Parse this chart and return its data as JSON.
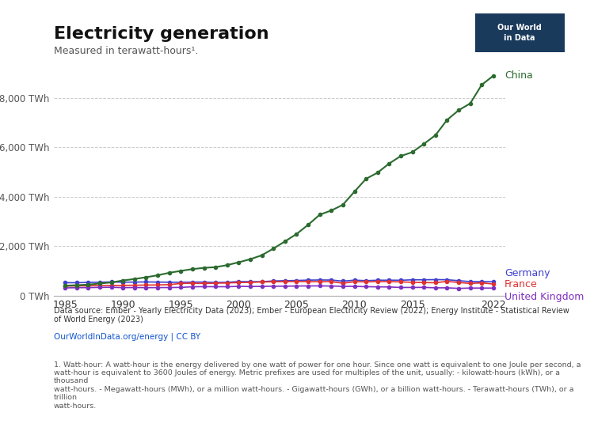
{
  "title": "Electricity generation",
  "subtitle": "Measured in terawatt-hours¹.",
  "years": [
    1985,
    1986,
    1987,
    1988,
    1989,
    1990,
    1991,
    1992,
    1993,
    1994,
    1995,
    1996,
    1997,
    1998,
    1999,
    2000,
    2001,
    2002,
    2003,
    2004,
    2005,
    2006,
    2007,
    2008,
    2009,
    2010,
    2011,
    2012,
    2013,
    2014,
    2015,
    2016,
    2017,
    2018,
    2019,
    2020,
    2021,
    2022
  ],
  "china": [
    410,
    430,
    450,
    500,
    540,
    620,
    680,
    750,
    830,
    930,
    1007,
    1080,
    1130,
    1160,
    1240,
    1356,
    1480,
    1640,
    1910,
    2200,
    2500,
    2870,
    3280,
    3450,
    3680,
    4210,
    4730,
    4980,
    5350,
    5650,
    5810,
    6142,
    6495,
    7111,
    7503,
    7779,
    8534,
    8900
  ],
  "germany": [
    530,
    530,
    540,
    550,
    560,
    550,
    555,
    560,
    555,
    550,
    545,
    555,
    555,
    540,
    545,
    576,
    572,
    572,
    600,
    612,
    620,
    635,
    640,
    638,
    593,
    633,
    613,
    630,
    632,
    629,
    647,
    649,
    655,
    651,
    612,
    575,
    572,
    568
  ],
  "france": [
    390,
    400,
    405,
    415,
    420,
    420,
    428,
    434,
    440,
    452,
    500,
    510,
    502,
    510,
    520,
    536,
    542,
    560,
    567,
    574,
    574,
    572,
    568,
    573,
    510,
    569,
    562,
    574,
    570,
    563,
    546,
    535,
    529,
    582,
    540,
    500,
    524,
    476
  ],
  "uk": [
    320,
    328,
    332,
    340,
    345,
    330,
    335,
    330,
    332,
    335,
    340,
    365,
    370,
    368,
    368,
    381,
    376,
    379,
    388,
    388,
    395,
    399,
    400,
    395,
    381,
    382,
    369,
    362,
    358,
    337,
    338,
    341,
    323,
    323,
    300,
    313,
    313,
    311
  ],
  "china_color": "#2c6b2f",
  "germany_color": "#4040d0",
  "france_color": "#e03030",
  "uk_color": "#8030c0",
  "bg_color": "#ffffff",
  "plot_bg": "#ffffff",
  "grid_color": "#cccccc",
  "yticks": [
    0,
    2000,
    4000,
    6000,
    8000
  ],
  "ytick_labels": [
    "0 TWh",
    "2,000 TWh",
    "4,000 TWh",
    "6,000 TWh",
    "8,000 TWh"
  ],
  "xticks": [
    1985,
    1990,
    1995,
    2000,
    2005,
    2010,
    2015,
    2022
  ],
  "ymax": 9500,
  "datasource": "Data source: Ember - Yearly Electricity Data (2023); Ember - European Electricity Review (2022); Energy Institute - Statistical Review\nof World Energy (2023)",
  "url": "OurWorldInData.org/energy | CC BY",
  "footnote": "1. Watt-hour: A watt-hour is the energy delivered by one watt of power for one hour. Since one watt is equivalent to one Joule per second, a\nwatt-hour is equivalent to 3600 Joules of energy. Metric prefixes are used for multiples of the unit, usually: - kilowatt-hours (kWh), or a thousand\nwatt-hours. - Megawatt-hours (MWh), or a million watt-hours. - Gigawatt-hours (GWh), or a billion watt-hours. - Terawatt-hours (TWh), or a trillion\nwatt-hours.",
  "logo_bg": "#1a3a5c",
  "logo_text": "Our World\nin Data"
}
